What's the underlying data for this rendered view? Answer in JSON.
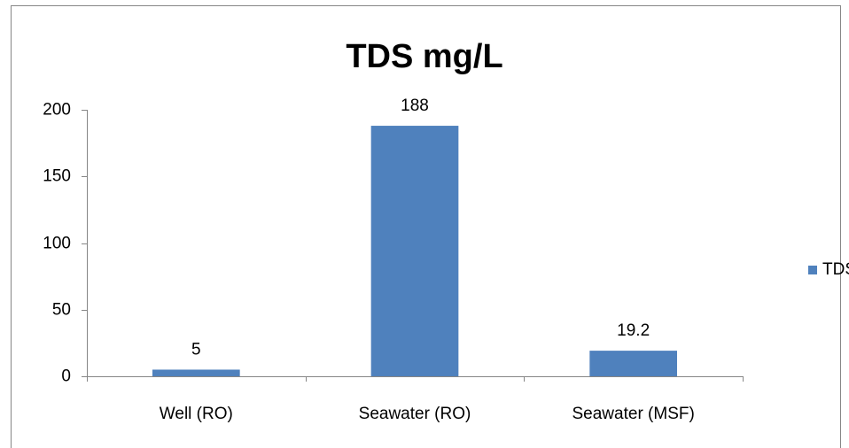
{
  "chart_data": {
    "type": "bar",
    "title": "TDS mg/L",
    "categories": [
      "Well (RO)",
      "Seawater (RO)",
      "Seawater (MSF)"
    ],
    "series": [
      {
        "name": "TDS",
        "color": "#4f81bd",
        "values": [
          5,
          188,
          19.2
        ]
      }
    ],
    "ylim": [
      0,
      200
    ],
    "yticks": [
      0,
      50,
      100,
      150,
      200
    ],
    "grid": false,
    "legend": "right"
  }
}
